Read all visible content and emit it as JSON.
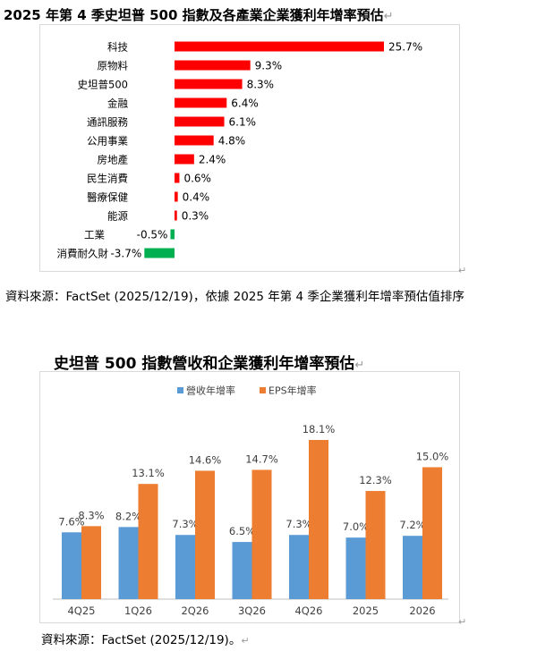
{
  "chart1": {
    "title": "2025 年第 4 季史坦普 500 指數及各產業企業獲利年增率預估",
    "source": "資料來源：FactSet (2025/12/19)，依據 2025 年第 4 季企業獲利年增率預估值排序",
    "colors": {
      "positive": "#ff0000",
      "negative": "#00b050"
    }
  },
  "chart2": {
    "title": "史坦普 500 指數營收和企業獲利年增率預估",
    "source": "資料來源：FactSet (2025/12/19)。",
    "colors": {
      "revenue": "#5b9bd5",
      "eps": "#ed7d31"
    }
  },
  "chart_data": [
    {
      "type": "bar",
      "orientation": "horizontal",
      "title": "2025 年第 4 季史坦普 500 指數及各產業企業獲利年增率預估",
      "categories": [
        "科技",
        "原物料",
        "史坦普500",
        "金融",
        "通訊服務",
        "公用事業",
        "房地產",
        "民生消費",
        "醫療保健",
        "能源",
        "工業",
        "消費耐久財"
      ],
      "values": [
        25.7,
        9.3,
        8.3,
        6.4,
        6.1,
        4.8,
        2.4,
        0.6,
        0.4,
        0.3,
        -0.5,
        -3.7
      ],
      "labels": [
        "25.7%",
        "9.3%",
        "8.3%",
        "6.4%",
        "6.1%",
        "4.8%",
        "2.4%",
        "0.6%",
        "0.4%",
        "0.3%",
        "-0.5%",
        "-3.7%"
      ],
      "grid": false
    },
    {
      "type": "bar",
      "title": "史坦普 500 指數營收和企業獲利年增率預估",
      "categories": [
        "4Q25",
        "1Q26",
        "2Q26",
        "3Q26",
        "4Q26",
        "2025",
        "2026"
      ],
      "series": [
        {
          "name": "營收年增率",
          "values": [
            7.6,
            8.2,
            7.3,
            6.5,
            7.3,
            7.0,
            7.2
          ],
          "labels": [
            "7.6%",
            "8.2%",
            "7.3%",
            "6.5%",
            "7.3%",
            "7.0%",
            "7.2%"
          ]
        },
        {
          "name": "EPS年增率",
          "values": [
            8.3,
            13.1,
            14.6,
            14.7,
            18.1,
            12.3,
            15.0
          ],
          "labels": [
            "8.3%",
            "13.1%",
            "14.6%",
            "14.7%",
            "18.1%",
            "12.3%",
            "15.0%"
          ]
        }
      ],
      "legend": "top",
      "grid": false
    }
  ]
}
